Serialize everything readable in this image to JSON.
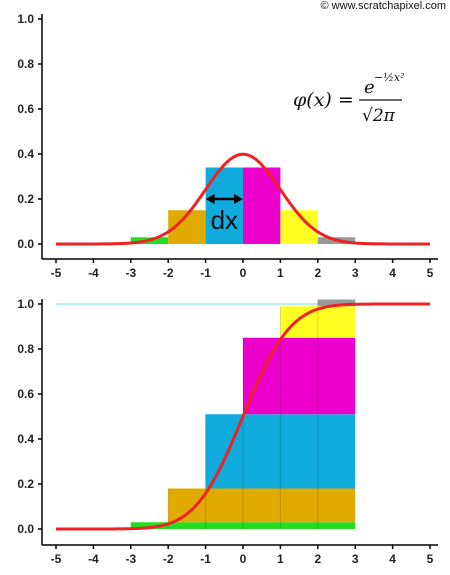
{
  "copyright": "© www.scratchapixel.com",
  "formula": {
    "lhs": "φ(x) =",
    "numerator_base": "e",
    "numerator_exponent": "−½x²",
    "denominator": "√2π"
  },
  "dx_label": "dx",
  "chart_data": [
    {
      "type": "bar",
      "name": "pdf",
      "xlim": [
        -5,
        5
      ],
      "ylim": [
        0,
        1.0
      ],
      "x_ticks": [
        "-5",
        "-4",
        "-3",
        "-2",
        "-1",
        "0",
        "1",
        "2",
        "3",
        "4",
        "5"
      ],
      "y_ticks": [
        "0.0",
        "0.2",
        "0.4",
        "0.6",
        "0.8",
        "1.0"
      ],
      "bars": [
        {
          "x0": -3,
          "x1": -2,
          "value": 0.03,
          "color": "#22dd22"
        },
        {
          "x0": -2,
          "x1": -1,
          "value": 0.15,
          "color": "#e0aa00"
        },
        {
          "x0": -1,
          "x1": 0,
          "value": 0.34,
          "color": "#11aadd"
        },
        {
          "x0": 0,
          "x1": 1,
          "value": 0.34,
          "color": "#ee00cc"
        },
        {
          "x0": 1,
          "x1": 2,
          "value": 0.15,
          "color": "#ffff22"
        },
        {
          "x0": 2,
          "x1": 3,
          "value": 0.03,
          "color": "#999999"
        }
      ],
      "curve": {
        "function": "normal_pdf",
        "color": "#ee2222"
      },
      "annotation": {
        "text": "dx",
        "from": -1,
        "to": 0,
        "y": 0.2
      }
    },
    {
      "type": "bar",
      "name": "cdf",
      "xlim": [
        -5,
        5
      ],
      "ylim": [
        0,
        1.0
      ],
      "x_ticks": [
        "-5",
        "-4",
        "-3",
        "-2",
        "-1",
        "0",
        "1",
        "2",
        "3",
        "4",
        "5"
      ],
      "y_ticks": [
        "0.0",
        "0.2",
        "0.4",
        "0.6",
        "0.8",
        "1.0"
      ],
      "reference_line": {
        "y": 1.0,
        "color": "#66ddee"
      },
      "stacked_bars": [
        {
          "x0": -3,
          "x1": 3,
          "y0": 0.0,
          "y1": 0.03,
          "color": "#22dd22"
        },
        {
          "x0": -2,
          "x1": 3,
          "y0": 0.03,
          "y1": 0.18,
          "color": "#e0aa00"
        },
        {
          "x0": -1,
          "x1": 3,
          "y0": 0.18,
          "y1": 0.51,
          "color": "#11aadd"
        },
        {
          "x0": 0,
          "x1": 3,
          "y0": 0.51,
          "y1": 0.85,
          "color": "#ee00cc"
        },
        {
          "x0": 1,
          "x1": 3,
          "y0": 0.85,
          "y1": 0.99,
          "color": "#ffff22"
        },
        {
          "x0": 2,
          "x1": 3,
          "y0": 0.99,
          "y1": 1.02,
          "color": "#999999"
        }
      ],
      "curve": {
        "function": "normal_cdf",
        "color": "#ee2222"
      }
    }
  ]
}
